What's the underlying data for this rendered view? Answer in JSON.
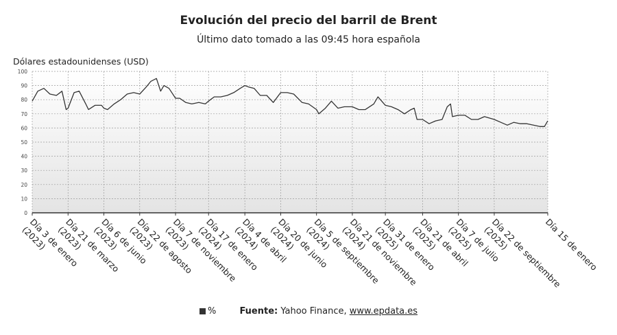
{
  "chart_data": {
    "type": "line",
    "title": "Evolución del precio del barril de Brent",
    "subtitle": "Último dato tomado a las 09:45 hora española",
    "ylabel": "Dólares estadounidenses (USD)",
    "ylim": [
      0,
      100
    ],
    "yticks": [
      0,
      10,
      20,
      30,
      40,
      50,
      60,
      70,
      80,
      90,
      100
    ],
    "grid": true,
    "legend": "bottom",
    "line_color": "#333333",
    "x_tick_labels": [
      {
        "label": "Día 3 de enero (2023)",
        "date": "2023-01-03"
      },
      {
        "label": "Día 21 de marzo (2023)",
        "date": "2023-03-21"
      },
      {
        "label": "Día 6 de junio (2023)",
        "date": "2023-06-06"
      },
      {
        "label": "Día 22 de agosto (2023)",
        "date": "2023-08-22"
      },
      {
        "label": "Día 7 de noviembre (2023)",
        "date": "2023-11-07"
      },
      {
        "label": "Día 17 de enero (2024)",
        "date": "2024-01-17"
      },
      {
        "label": "Día 4 de abril (2024)",
        "date": "2024-04-04"
      },
      {
        "label": "Día 20 de junio (2024)",
        "date": "2024-06-20"
      },
      {
        "label": "Día 5 de septiembre (2024)",
        "date": "2024-09-05"
      },
      {
        "label": "Día 21 de noviembre (2024)",
        "date": "2024-11-21"
      },
      {
        "label": "Día 31 de enero (2025)",
        "date": "2025-01-31"
      },
      {
        "label": "Día 21 de abril (2025)",
        "date": "2025-04-21"
      },
      {
        "label": "Día 7 de julio (2025)",
        "date": "2025-07-07"
      },
      {
        "label": "Día 22 de septiembre (2025)",
        "date": "2025-09-22"
      },
      {
        "label": "Día 15 de enero",
        "date": "2026-01-15"
      }
    ],
    "x": [
      "2023-01-03",
      "2023-01-15",
      "2023-01-28",
      "2023-02-10",
      "2023-02-24",
      "2023-03-08",
      "2023-03-17",
      "2023-03-21",
      "2023-04-03",
      "2023-04-14",
      "2023-04-28",
      "2023-05-04",
      "2023-05-18",
      "2023-06-01",
      "2023-06-06",
      "2023-06-14",
      "2023-06-28",
      "2023-07-12",
      "2023-07-26",
      "2023-08-09",
      "2023-08-22",
      "2023-09-05",
      "2023-09-15",
      "2023-09-27",
      "2023-10-06",
      "2023-10-13",
      "2023-10-24",
      "2023-11-07",
      "2023-11-16",
      "2023-11-29",
      "2023-12-12",
      "2023-12-27",
      "2024-01-10",
      "2024-01-17",
      "2024-01-29",
      "2024-02-12",
      "2024-02-26",
      "2024-03-11",
      "2024-03-25",
      "2024-04-04",
      "2024-04-12",
      "2024-04-24",
      "2024-05-07",
      "2024-05-21",
      "2024-06-04",
      "2024-06-20",
      "2024-07-04",
      "2024-07-18",
      "2024-08-05",
      "2024-08-19",
      "2024-09-05",
      "2024-09-10",
      "2024-09-24",
      "2024-10-07",
      "2024-10-21",
      "2024-11-04",
      "2024-11-21",
      "2024-12-05",
      "2024-12-19",
      "2025-01-06",
      "2025-01-15",
      "2025-01-31",
      "2025-02-13",
      "2025-02-27",
      "2025-03-13",
      "2025-03-27",
      "2025-04-03",
      "2025-04-09",
      "2025-04-21",
      "2025-05-05",
      "2025-05-19",
      "2025-06-02",
      "2025-06-13",
      "2025-06-20",
      "2025-06-24",
      "2025-07-07",
      "2025-07-21",
      "2025-08-04",
      "2025-08-18",
      "2025-09-01",
      "2025-09-22",
      "2025-10-06",
      "2025-10-20",
      "2025-11-03",
      "2025-11-17",
      "2025-12-01",
      "2025-12-15",
      "2025-12-29",
      "2026-01-08",
      "2026-01-15"
    ],
    "values": [
      79,
      86,
      88,
      84,
      83,
      86,
      73,
      74,
      85,
      86,
      77,
      73,
      76,
      76,
      74,
      73,
      77,
      80,
      84,
      85,
      84,
      89,
      93,
      95,
      86,
      90,
      88,
      81,
      81,
      78,
      77,
      78,
      77,
      79,
      82,
      82,
      83,
      85,
      88,
      90,
      89,
      88,
      83,
      83,
      78,
      85,
      85,
      84,
      78,
      77,
      73,
      70,
      74,
      79,
      74,
      75,
      75,
      73,
      73,
      77,
      82,
      76,
      75,
      73,
      70,
      73,
      74,
      66,
      66,
      63,
      65,
      66,
      75,
      77,
      68,
      69,
      69,
      66,
      66,
      68,
      66,
      64,
      62,
      64,
      63,
      63,
      62,
      61,
      61,
      65
    ]
  },
  "footer": {
    "legend_label": "%",
    "source_label": "Fuente:",
    "source_text": "Yahoo Finance,",
    "source_link": "www.epdata.es"
  }
}
